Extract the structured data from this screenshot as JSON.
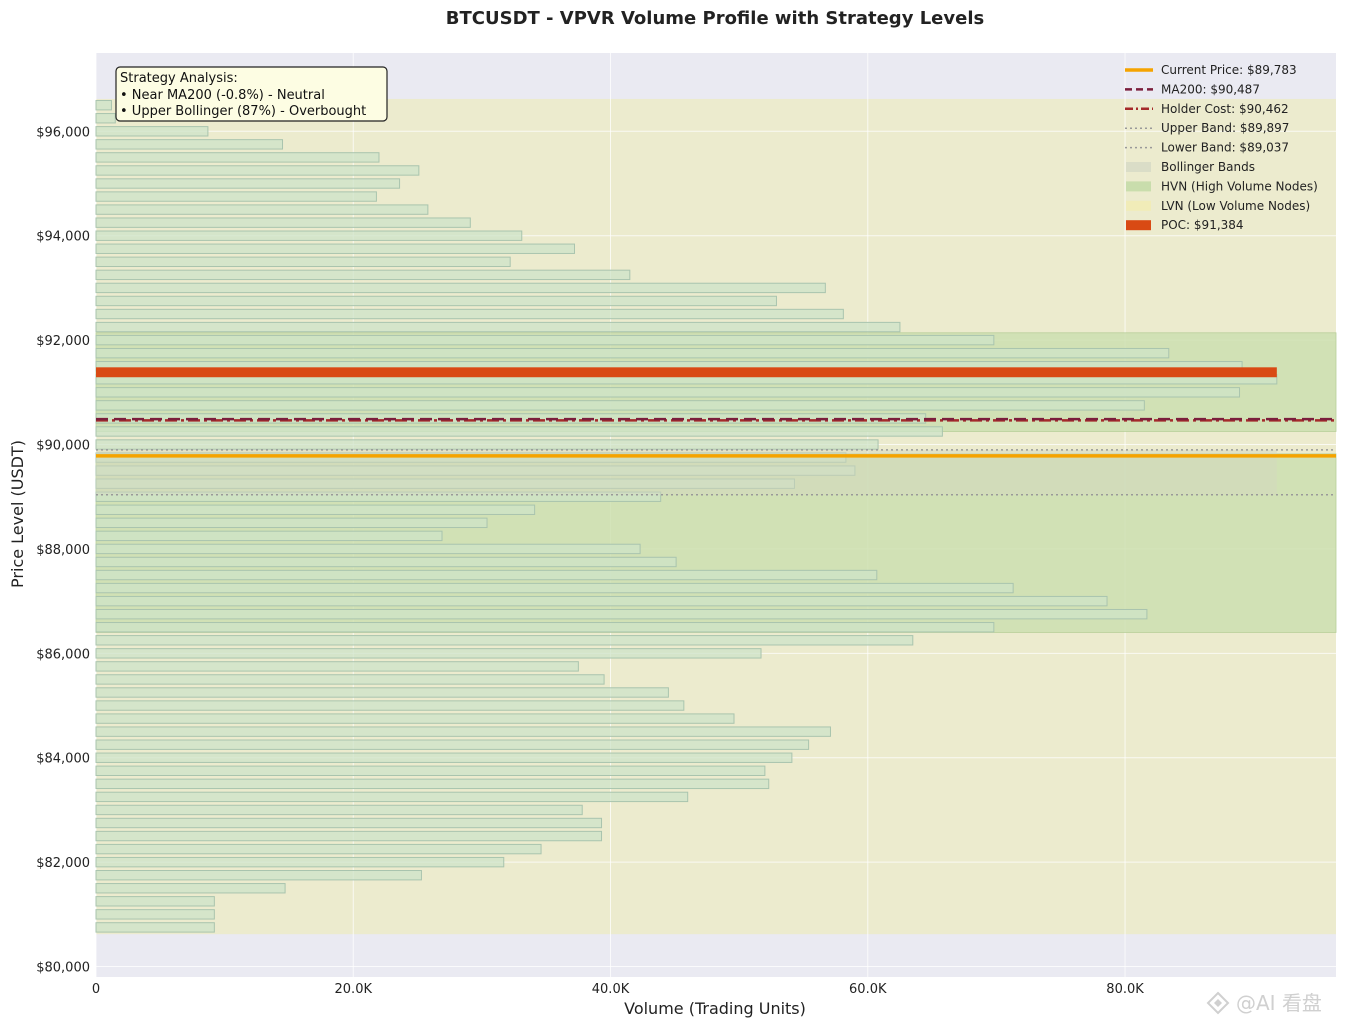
{
  "chart_data": {
    "type": "bar",
    "orientation": "horizontal",
    "title": "BTCUSDT - VPVR Volume Profile with Strategy Levels",
    "xlabel": "Volume (Trading Units)",
    "ylabel": "Price Level (USDT)",
    "xlim": [
      0,
      96400
    ],
    "ylim": [
      79800,
      97500
    ],
    "x_ticks": [
      0,
      20000,
      40000,
      60000,
      80000
    ],
    "x_tick_labels": [
      "0",
      "20.0K",
      "40.0K",
      "60.0K",
      "80.0K"
    ],
    "y_ticks": [
      80000,
      82000,
      84000,
      86000,
      88000,
      90000,
      92000,
      94000,
      96000
    ],
    "y_tick_labels": [
      "$80,000",
      "$82,000",
      "$84,000",
      "$86,000",
      "$88,000",
      "$90,000",
      "$92,000",
      "$94,000",
      "$96,000"
    ],
    "grid": true,
    "price_range": [
      80620,
      96620
    ],
    "bin_height": 250,
    "bins": [
      {
        "price": 96500,
        "volume": 1200
      },
      {
        "price": 96250,
        "volume": 1500
      },
      {
        "price": 96000,
        "volume": 8700
      },
      {
        "price": 95750,
        "volume": 14500
      },
      {
        "price": 95500,
        "volume": 22000
      },
      {
        "price": 95250,
        "volume": 25100
      },
      {
        "price": 95000,
        "volume": 23600
      },
      {
        "price": 94750,
        "volume": 21800
      },
      {
        "price": 94500,
        "volume": 25800
      },
      {
        "price": 94250,
        "volume": 29100
      },
      {
        "price": 94000,
        "volume": 33100
      },
      {
        "price": 93750,
        "volume": 37200
      },
      {
        "price": 93500,
        "volume": 32200
      },
      {
        "price": 93250,
        "volume": 41500
      },
      {
        "price": 93000,
        "volume": 56700
      },
      {
        "price": 92750,
        "volume": 52900
      },
      {
        "price": 92500,
        "volume": 58100
      },
      {
        "price": 92250,
        "volume": 62500
      },
      {
        "price": 92000,
        "volume": 69800
      },
      {
        "price": 91750,
        "volume": 83400
      },
      {
        "price": 91500,
        "volume": 89100
      },
      {
        "price": 91250,
        "volume": 91800
      },
      {
        "price": 91000,
        "volume": 88900
      },
      {
        "price": 90750,
        "volume": 81500
      },
      {
        "price": 90500,
        "volume": 64500
      },
      {
        "price": 90250,
        "volume": 65800
      },
      {
        "price": 90000,
        "volume": 60800
      },
      {
        "price": 89750,
        "volume": 58300
      },
      {
        "price": 89500,
        "volume": 59000
      },
      {
        "price": 89250,
        "volume": 54300
      },
      {
        "price": 89000,
        "volume": 43900
      },
      {
        "price": 88750,
        "volume": 34100
      },
      {
        "price": 88500,
        "volume": 30400
      },
      {
        "price": 88250,
        "volume": 26900
      },
      {
        "price": 88000,
        "volume": 42300
      },
      {
        "price": 87750,
        "volume": 45100
      },
      {
        "price": 87500,
        "volume": 60700
      },
      {
        "price": 87250,
        "volume": 71300
      },
      {
        "price": 87000,
        "volume": 78600
      },
      {
        "price": 86750,
        "volume": 81700
      },
      {
        "price": 86500,
        "volume": 69800
      },
      {
        "price": 86250,
        "volume": 63500
      },
      {
        "price": 86000,
        "volume": 51700
      },
      {
        "price": 85750,
        "volume": 37500
      },
      {
        "price": 85500,
        "volume": 39500
      },
      {
        "price": 85250,
        "volume": 44500
      },
      {
        "price": 85000,
        "volume": 45700
      },
      {
        "price": 84750,
        "volume": 49600
      },
      {
        "price": 84500,
        "volume": 57100
      },
      {
        "price": 84250,
        "volume": 55400
      },
      {
        "price": 84000,
        "volume": 54100
      },
      {
        "price": 83750,
        "volume": 52000
      },
      {
        "price": 83500,
        "volume": 52300
      },
      {
        "price": 83250,
        "volume": 46000
      },
      {
        "price": 83000,
        "volume": 37800
      },
      {
        "price": 82750,
        "volume": 39300
      },
      {
        "price": 82500,
        "volume": 39300
      },
      {
        "price": 82250,
        "volume": 34600
      },
      {
        "price": 82000,
        "volume": 31700
      },
      {
        "price": 81750,
        "volume": 25300
      },
      {
        "price": 81500,
        "volume": 14700
      },
      {
        "price": 81250,
        "volume": 9200
      },
      {
        "price": 81000,
        "volume": 9200
      },
      {
        "price": 80750,
        "volume": 9200
      }
    ],
    "hvn_zones": [
      [
        90250,
        92140
      ],
      [
        86400,
        89820
      ]
    ],
    "bollinger_bands": {
      "upper": 89897,
      "lower": 89037
    },
    "levels": {
      "current_price": 89783,
      "ma200": 90487,
      "holder_cost": 90462,
      "poc": 91384
    },
    "legend": {
      "position": "upper right",
      "entries": [
        {
          "label": "Current Price: $89,783",
          "style": "solid-line",
          "color": "#f5a300"
        },
        {
          "label": "MA200: $90,487",
          "style": "dashed-line",
          "color": "#7b1e3c"
        },
        {
          "label": "Holder Cost: $90,462",
          "style": "dashdot-line",
          "color": "#a52a2a"
        },
        {
          "label": "Upper Band: $89,897",
          "style": "dotted-line",
          "color": "#999999"
        },
        {
          "label": "Lower Band: $89,037",
          "style": "dotted-line",
          "color": "#999999"
        },
        {
          "label": "Bollinger Bands",
          "style": "patch",
          "color": "#d8dcc6"
        },
        {
          "label": "HVN (High Volume Nodes)",
          "style": "patch",
          "color": "#c5dba8"
        },
        {
          "label": "LVN (Low Volume Nodes)",
          "style": "patch",
          "color": "#f2ecb6"
        },
        {
          "label": "POC: $91,384",
          "style": "patch",
          "color": "#d94a14"
        }
      ]
    },
    "annotation": {
      "title": "Strategy Analysis:",
      "lines": [
        "• Near MA200 (-0.8%) - Neutral",
        "• Upper Bollinger (87%) - Overbought"
      ],
      "position": "upper left"
    }
  },
  "colors": {
    "background": "#eaeaf2",
    "lvn": "#ecebce",
    "hvn": "#cddfb0",
    "bar_fill": "#cde3c8",
    "bar_stroke": "#a9c4ae",
    "band_fill": "#d3d6c1",
    "current": "#f5a300",
    "ma200": "#7b1e3c",
    "holder": "#a52a2a",
    "band_line": "#999999",
    "poc": "#d94a14"
  },
  "watermark": "@AI 看盘"
}
